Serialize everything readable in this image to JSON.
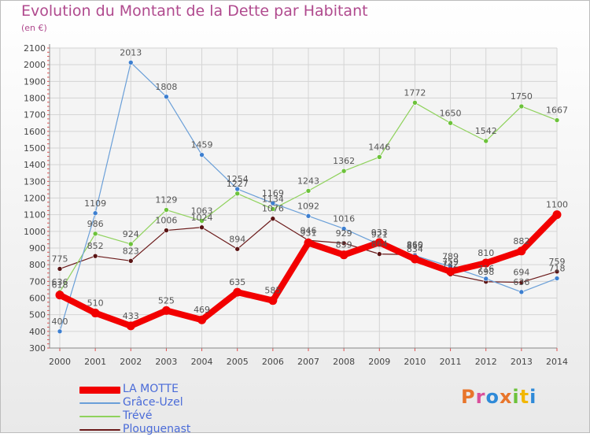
{
  "header": {
    "title": "Evolution du Montant de la Dette par Habitant",
    "subtitle": "(en €)"
  },
  "chart_data": {
    "type": "line",
    "categories": [
      "2000",
      "2001",
      "2002",
      "2003",
      "2004",
      "2005",
      "2006",
      "2007",
      "2008",
      "2009",
      "2010",
      "2011",
      "2012",
      "2013",
      "2014"
    ],
    "ylim": [
      300,
      2100
    ],
    "y_ticks": [
      300,
      400,
      500,
      600,
      700,
      800,
      900,
      1000,
      1100,
      1200,
      1300,
      1400,
      1500,
      1600,
      1700,
      1800,
      1900,
      2000,
      2100
    ],
    "y_tick_labels": [
      "300",
      "400",
      "500",
      "600",
      "700",
      "800",
      "900",
      "1000",
      "1100",
      "1200",
      "1300",
      "1400",
      "1500",
      "1600",
      "1700",
      "1800",
      "1900",
      "2000",
      "2100"
    ],
    "grid": true,
    "legend_position": "bottom-left",
    "series": [
      {
        "name": "Plouguenast",
        "color": "#6b1a1a",
        "marker": "#5a1414",
        "width": 1.2,
        "point": 3,
        "values": [
          775,
          852,
          823,
          1006,
          1024,
          894,
          1076,
          946,
          929,
          864,
          860,
          742,
          698,
          694,
          759
        ],
        "labels": [
          "775",
          "852",
          "823",
          "1006",
          "1024",
          "894",
          "1076",
          "946",
          "929",
          "864",
          "860",
          "742",
          "698",
          "694",
          "759"
        ]
      },
      {
        "name": "Trévé",
        "color": "#8fd25c",
        "marker": "#6cc23a",
        "width": 1.2,
        "point": 3,
        "values": [
          636,
          986,
          924,
          1129,
          1063,
          1227,
          1134,
          1243,
          1362,
          1446,
          1772,
          1650,
          1542,
          1750,
          1667
        ],
        "labels": [
          "636",
          "986",
          "924",
          "1129",
          "1063",
          "1227",
          "1134",
          "1243",
          "1362",
          "1446",
          "1772",
          "1650",
          "1542",
          "1750",
          "1667"
        ]
      },
      {
        "name": "Grâce-Uzel",
        "color": "#6a9fd8",
        "marker": "#3d7fd0",
        "width": 1.2,
        "point": 3,
        "values": [
          400,
          1109,
          2013,
          1808,
          1459,
          1254,
          1169,
          1092,
          1016,
          921,
          855,
          789,
          716,
          636,
          718
        ],
        "labels": [
          "400",
          "1109",
          "2013",
          "1808",
          "1459",
          "1254",
          "1169",
          "1092",
          "1016",
          "921",
          "855",
          "789",
          "716",
          "636",
          "718"
        ]
      },
      {
        "name": "LA MOTTE",
        "color": "#f20000",
        "marker": "#f20000",
        "width": 8,
        "point": 5.5,
        "values": [
          618,
          510,
          433,
          525,
          469,
          635,
          585,
          931,
          859,
          933,
          834,
          759,
          810,
          882,
          1100
        ],
        "labels": [
          "618",
          "510",
          "433",
          "525",
          "469",
          "635",
          "585",
          "931",
          "859",
          "933",
          "834",
          "759",
          "810",
          "882",
          "1100"
        ]
      }
    ]
  },
  "legend": {
    "items": [
      {
        "label": "LA MOTTE",
        "color": "#f20000"
      },
      {
        "label": "Grâce-Uzel",
        "color": "#6a9fd8"
      },
      {
        "label": "Trévé",
        "color": "#8fd25c"
      },
      {
        "label": "Plouguenast",
        "color": "#6b1a1a"
      }
    ]
  },
  "logo": {
    "text": "Proxiti",
    "letter_colors": [
      "#e8752b",
      "#d94f9b",
      "#2f8ad8",
      "#e8752b",
      "#6cc23a",
      "#f2b705",
      "#2f8ad8"
    ]
  }
}
